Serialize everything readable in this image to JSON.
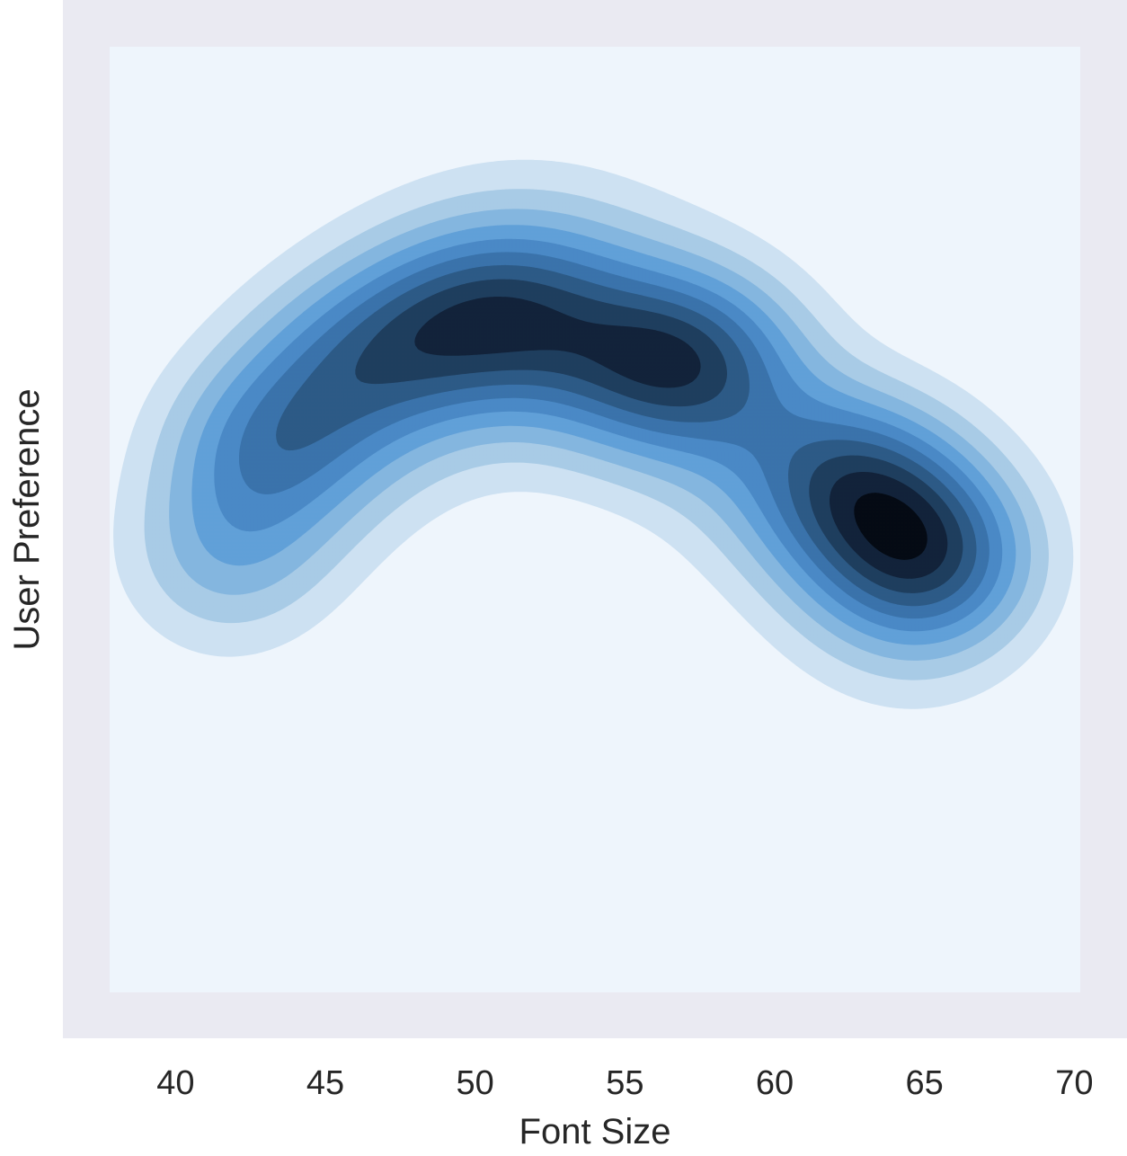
{
  "chart_data": {
    "type": "kde-contour",
    "title": "",
    "xlabel": "Font Size",
    "ylabel": "User Preference",
    "xlim": [
      37.8,
      70.2
    ],
    "ylim": [
      0,
      1
    ],
    "x_ticks": [
      40,
      45,
      50,
      55,
      60,
      65,
      70
    ],
    "y_ticks": [],
    "x_tick_labels": [
      "40",
      "45",
      "50",
      "55",
      "60",
      "65",
      "70"
    ],
    "grid": false,
    "legend": "none",
    "colors": {
      "figure_background": "#eaeaf2",
      "levels": [
        "#eef5fc",
        "#cde1f2",
        "#a8cbe6",
        "#84b6df",
        "#61a0d8",
        "#4a89c6",
        "#3a73ab",
        "#2d5a86",
        "#1f3e5e",
        "#12233a",
        "#050b14"
      ]
    },
    "density_levels": 10,
    "density_peaks": [
      {
        "x": 65.2,
        "y": 0.46,
        "weight": 1.0
      },
      {
        "x": 62.8,
        "y": 0.54,
        "weight": 0.9
      },
      {
        "x": 57.5,
        "y": 0.67,
        "weight": 0.75
      },
      {
        "x": 51.5,
        "y": 0.72,
        "weight": 0.62
      },
      {
        "x": 48.5,
        "y": 0.7,
        "weight": 0.55
      },
      {
        "x": 43.0,
        "y": 0.58,
        "weight": 0.55
      },
      {
        "x": 45.5,
        "y": 0.66,
        "weight": 0.45
      },
      {
        "x": 55.0,
        "y": 0.66,
        "weight": 0.45
      },
      {
        "x": 41.5,
        "y": 0.46,
        "weight": 0.35
      }
    ]
  }
}
